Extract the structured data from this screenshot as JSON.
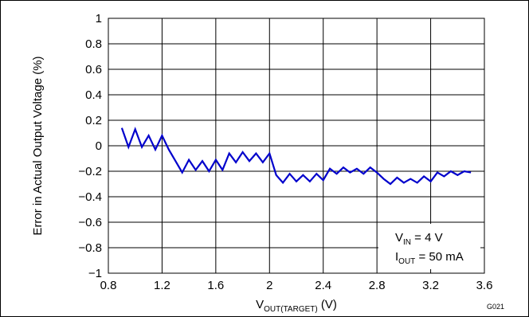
{
  "chart_data": {
    "type": "line",
    "title": "",
    "xlabel": {
      "main": "V",
      "sub": "OUT(TARGET)",
      "unit": " (V)"
    },
    "ylabel": "Error in Actual Output Voltage (%)",
    "xlim": [
      0.8,
      3.6
    ],
    "ylim": [
      -1,
      1
    ],
    "x_ticks": [
      "0.8",
      "1.2",
      "1.6",
      "2",
      "2.4",
      "2.8",
      "3.2",
      "3.6"
    ],
    "y_ticks": [
      "1",
      "0.8",
      "0.6",
      "0.4",
      "0.2",
      "0",
      "−0.2",
      "−0.4",
      "−0.6",
      "−0.8",
      "−1"
    ],
    "grid": true,
    "legend": "none",
    "series": [
      {
        "color": "#0000cc",
        "x": [
          0.9,
          0.95,
          1.0,
          1.05,
          1.1,
          1.15,
          1.2,
          1.25,
          1.3,
          1.35,
          1.4,
          1.45,
          1.5,
          1.55,
          1.6,
          1.65,
          1.7,
          1.75,
          1.8,
          1.85,
          1.9,
          1.95,
          2.0,
          2.05,
          2.1,
          2.15,
          2.2,
          2.25,
          2.3,
          2.35,
          2.4,
          2.45,
          2.5,
          2.55,
          2.6,
          2.65,
          2.7,
          2.75,
          2.8,
          2.85,
          2.9,
          2.95,
          3.0,
          3.05,
          3.1,
          3.15,
          3.2,
          3.25,
          3.3,
          3.35,
          3.4,
          3.45,
          3.5
        ],
        "y": [
          0.14,
          -0.01,
          0.13,
          -0.01,
          0.08,
          -0.03,
          0.08,
          -0.03,
          -0.12,
          -0.21,
          -0.11,
          -0.19,
          -0.12,
          -0.2,
          -0.11,
          -0.19,
          -0.06,
          -0.13,
          -0.05,
          -0.12,
          -0.06,
          -0.13,
          -0.06,
          -0.23,
          -0.29,
          -0.22,
          -0.28,
          -0.23,
          -0.28,
          -0.22,
          -0.27,
          -0.18,
          -0.22,
          -0.17,
          -0.21,
          -0.18,
          -0.22,
          -0.17,
          -0.21,
          -0.26,
          -0.3,
          -0.25,
          -0.29,
          -0.26,
          -0.29,
          -0.24,
          -0.28,
          -0.21,
          -0.24,
          -0.2,
          -0.23,
          -0.2,
          -0.21
        ]
      }
    ],
    "annotations": [
      {
        "main": "V",
        "sub": "IN",
        "rest": " = 4 V"
      },
      {
        "main": "I",
        "sub": "OUT",
        "rest": " = 50 mA"
      }
    ],
    "figure_code": "G021"
  }
}
